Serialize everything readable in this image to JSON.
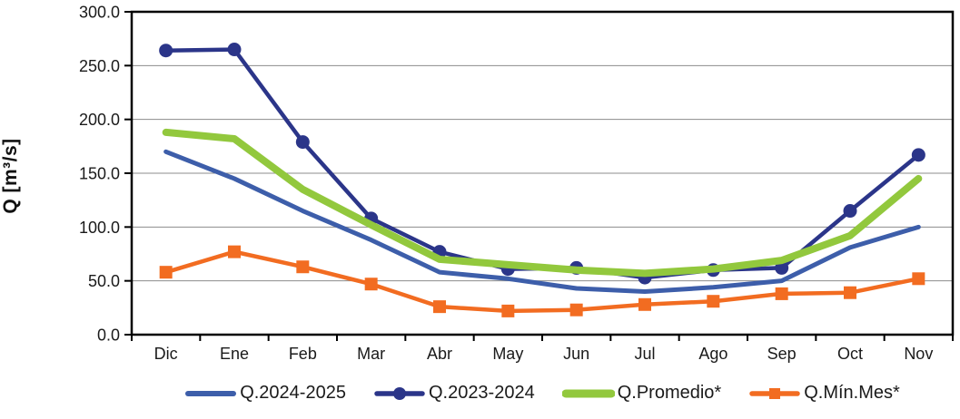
{
  "chart_data": {
    "type": "line",
    "title": "",
    "xlabel": "",
    "ylabel": "Q [m³/s]",
    "ylim": [
      0,
      300
    ],
    "y_tick_step": 50,
    "y_tick_decimals": 1,
    "grid": "horizontal",
    "legend_position": "bottom",
    "gridline_color": "#8c8c8c",
    "axis_color": "#000000",
    "text_color": "#1a1a1a",
    "categories": [
      "Dic",
      "Ene",
      "Feb",
      "Mar",
      "Abr",
      "May",
      "Jun",
      "Jul",
      "Ago",
      "Sep",
      "Oct",
      "Nov"
    ],
    "series": [
      {
        "name": "Q.2024-2025",
        "color": "#3d5eaa",
        "marker": "none",
        "line_width": 5,
        "values": [
          170,
          145,
          115,
          88,
          58,
          52,
          43,
          40,
          44,
          50,
          81,
          100
        ]
      },
      {
        "name": "Q.2023-2024",
        "color": "#2b3589",
        "marker": "circle",
        "line_width": 4.5,
        "values": [
          264,
          265,
          179,
          108,
          77,
          61,
          62,
          53,
          60,
          62,
          115,
          167
        ]
      },
      {
        "name": "Q.Promedio*",
        "color": "#92c83d",
        "marker": "none",
        "line_width": 8,
        "values": [
          188,
          182,
          135,
          102,
          70,
          65,
          60,
          57,
          61,
          69,
          92,
          145
        ]
      },
      {
        "name": "Q.Mín.Mes*",
        "color": "#f26c21",
        "marker": "square",
        "line_width": 4.5,
        "values": [
          58,
          77,
          63,
          47,
          26,
          22,
          23,
          28,
          31,
          38,
          39,
          52
        ]
      }
    ]
  }
}
